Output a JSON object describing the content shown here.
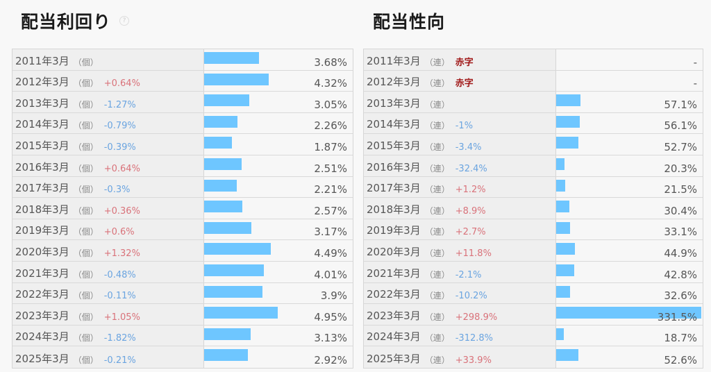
{
  "yield_section": {
    "title": "配当利回り",
    "help_icon": "?",
    "bar_color": "#6ec6ff",
    "rows": [
      {
        "period": "2011年3月",
        "unit": "（個）",
        "change": "",
        "dir": "",
        "value": "3.68%",
        "num": 3.68
      },
      {
        "period": "2012年3月",
        "unit": "（個）",
        "change": "+0.64%",
        "dir": "up",
        "value": "4.32%",
        "num": 4.32
      },
      {
        "period": "2013年3月",
        "unit": "（個）",
        "change": "-1.27%",
        "dir": "down",
        "value": "3.05%",
        "num": 3.05
      },
      {
        "period": "2014年3月",
        "unit": "（個）",
        "change": "-0.79%",
        "dir": "down",
        "value": "2.26%",
        "num": 2.26
      },
      {
        "period": "2015年3月",
        "unit": "（個）",
        "change": "-0.39%",
        "dir": "down",
        "value": "1.87%",
        "num": 1.87
      },
      {
        "period": "2016年3月",
        "unit": "（個）",
        "change": "+0.64%",
        "dir": "up",
        "value": "2.51%",
        "num": 2.51
      },
      {
        "period": "2017年3月",
        "unit": "（個）",
        "change": "-0.3%",
        "dir": "down",
        "value": "2.21%",
        "num": 2.21
      },
      {
        "period": "2018年3月",
        "unit": "（個）",
        "change": "+0.36%",
        "dir": "up",
        "value": "2.57%",
        "num": 2.57
      },
      {
        "period": "2019年3月",
        "unit": "（個）",
        "change": "+0.6%",
        "dir": "up",
        "value": "3.17%",
        "num": 3.17
      },
      {
        "period": "2020年3月",
        "unit": "（個）",
        "change": "+1.32%",
        "dir": "up",
        "value": "4.49%",
        "num": 4.49
      },
      {
        "period": "2021年3月",
        "unit": "（個）",
        "change": "-0.48%",
        "dir": "down",
        "value": "4.01%",
        "num": 4.01
      },
      {
        "period": "2022年3月",
        "unit": "（個）",
        "change": "-0.11%",
        "dir": "down",
        "value": "3.9%",
        "num": 3.9
      },
      {
        "period": "2023年3月",
        "unit": "（個）",
        "change": "+1.05%",
        "dir": "up",
        "value": "4.95%",
        "num": 4.95
      },
      {
        "period": "2024年3月",
        "unit": "（個）",
        "change": "-1.82%",
        "dir": "down",
        "value": "3.13%",
        "num": 3.13
      },
      {
        "period": "2025年3月",
        "unit": "（個）",
        "change": "-0.21%",
        "dir": "down",
        "value": "2.92%",
        "num": 2.92
      }
    ]
  },
  "payout_section": {
    "title": "配当性向",
    "bar_color": "#6ec6ff",
    "rows": [
      {
        "period": "2011年3月",
        "unit": "（連）",
        "change": "赤字",
        "dir": "deficit",
        "value": "-",
        "num": 0
      },
      {
        "period": "2012年3月",
        "unit": "（連）",
        "change": "赤字",
        "dir": "deficit",
        "value": "-",
        "num": 0
      },
      {
        "period": "2013年3月",
        "unit": "（連）",
        "change": "",
        "dir": "",
        "value": "57.1%",
        "num": 57.1
      },
      {
        "period": "2014年3月",
        "unit": "（連）",
        "change": "-1%",
        "dir": "down",
        "value": "56.1%",
        "num": 56.1
      },
      {
        "period": "2015年3月",
        "unit": "（連）",
        "change": "-3.4%",
        "dir": "down",
        "value": "52.7%",
        "num": 52.7
      },
      {
        "period": "2016年3月",
        "unit": "（連）",
        "change": "-32.4%",
        "dir": "down",
        "value": "20.3%",
        "num": 20.3
      },
      {
        "period": "2017年3月",
        "unit": "（連）",
        "change": "+1.2%",
        "dir": "up",
        "value": "21.5%",
        "num": 21.5
      },
      {
        "period": "2018年3月",
        "unit": "（連）",
        "change": "+8.9%",
        "dir": "up",
        "value": "30.4%",
        "num": 30.4
      },
      {
        "period": "2019年3月",
        "unit": "（連）",
        "change": "+2.7%",
        "dir": "up",
        "value": "33.1%",
        "num": 33.1
      },
      {
        "period": "2020年3月",
        "unit": "（連）",
        "change": "+11.8%",
        "dir": "up",
        "value": "44.9%",
        "num": 44.9
      },
      {
        "period": "2021年3月",
        "unit": "（連）",
        "change": "-2.1%",
        "dir": "down",
        "value": "42.8%",
        "num": 42.8
      },
      {
        "period": "2022年3月",
        "unit": "（連）",
        "change": "-10.2%",
        "dir": "down",
        "value": "32.6%",
        "num": 32.6
      },
      {
        "period": "2023年3月",
        "unit": "（連）",
        "change": "+298.9%",
        "dir": "up",
        "value": "331.5%",
        "num": 331.5
      },
      {
        "period": "2024年3月",
        "unit": "（連）",
        "change": "-312.8%",
        "dir": "down",
        "value": "18.7%",
        "num": 18.7
      },
      {
        "period": "2025年3月",
        "unit": "（連）",
        "change": "+33.9%",
        "dir": "up",
        "value": "52.6%",
        "num": 52.6
      }
    ]
  }
}
